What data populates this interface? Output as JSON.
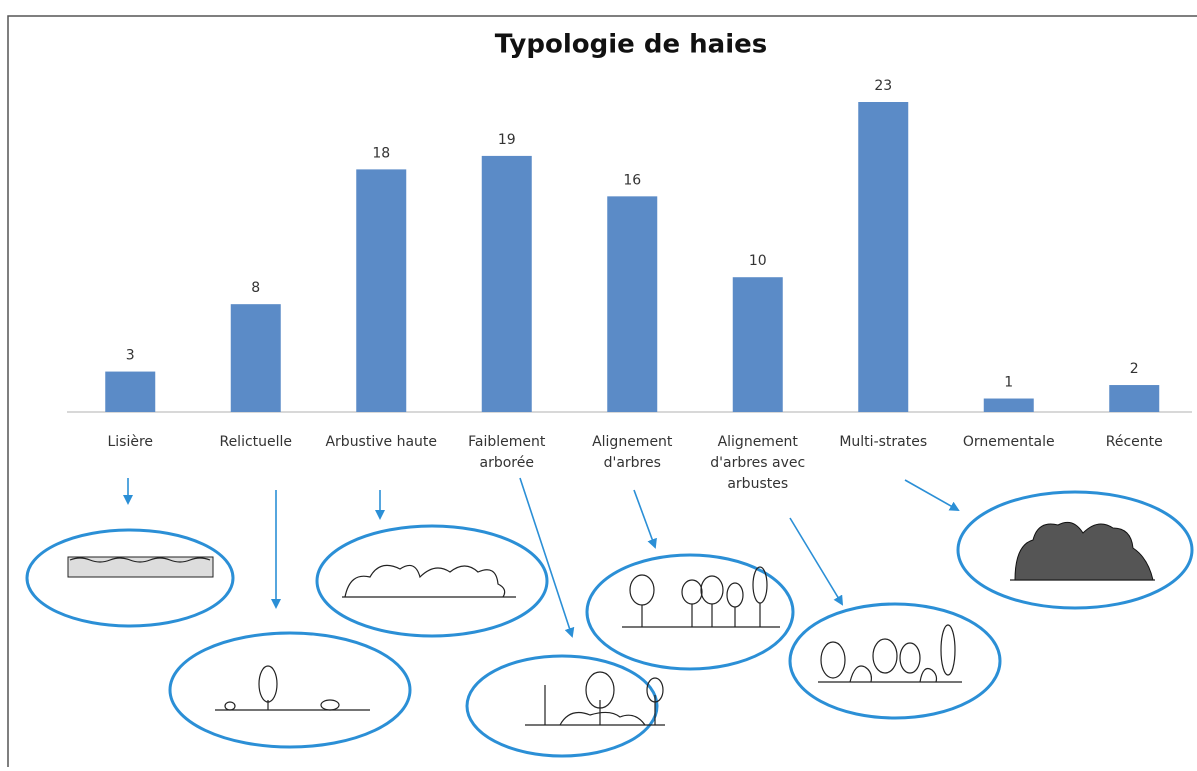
{
  "chart_data": {
    "type": "bar",
    "title": "Typologie de haies",
    "categories": [
      "Lisière",
      "Relictuelle",
      "Arbustive haute",
      "Faiblement arborée",
      "Alignement d'arbres",
      "Alignement d'arbres avec arbustes",
      "Multi-strates",
      "Ornementale",
      "Récente"
    ],
    "values": [
      3,
      8,
      18,
      19,
      16,
      10,
      23,
      1,
      2
    ],
    "color": "#5b8bc7"
  }
}
